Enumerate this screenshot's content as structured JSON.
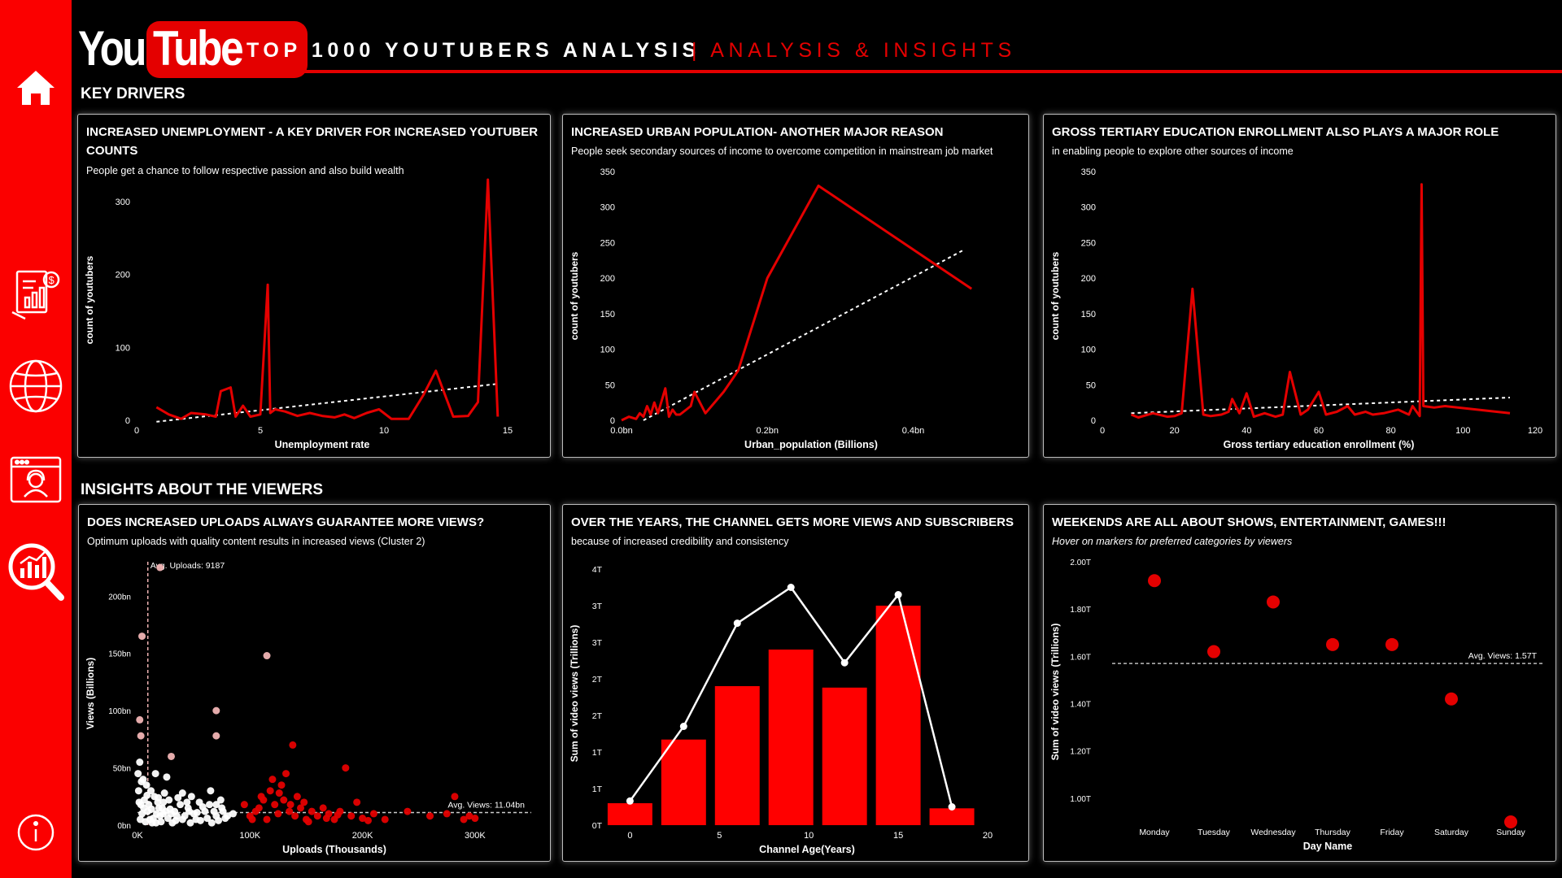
{
  "header": {
    "logo_you": "You",
    "logo_tube": "Tube",
    "title": "TOP 1000 YOUTUBERS ANALYSIS",
    "subtitle": "| ANALYSIS & INSIGHTS"
  },
  "sidebar": {
    "items": [
      {
        "icon": "home-icon"
      },
      {
        "icon": "financial-report-icon"
      },
      {
        "icon": "globe-icon"
      },
      {
        "icon": "web-support-icon"
      },
      {
        "icon": "analytics-search-icon"
      },
      {
        "icon": "info-icon"
      }
    ]
  },
  "colors": {
    "accent": "#e40000",
    "sidebar": "#fb0000",
    "background": "#000000",
    "light_marker": "#f0b4b4"
  },
  "sections": {
    "key_drivers": "KEY DRIVERS",
    "insights": "INSIGHTS ABOUT THE VIEWERS"
  },
  "cards": {
    "unemployment": {
      "title": "INCREASED UNEMPLOYMENT - A KEY DRIVER FOR INCREASED YOUTUBER COUNTS",
      "subtitle": "People get a chance to follow respective passion and also build wealth"
    },
    "urban": {
      "title": "INCREASED URBAN POPULATION- ANOTHER MAJOR REASON",
      "subtitle": "People seek secondary sources of income to overcome competition in mainstream job market"
    },
    "education": {
      "title": "GROSS TERTIARY EDUCATION ENROLLMENT ALSO PLAYS A MAJOR ROLE",
      "subtitle": "in enabling people to explore other sources of income"
    },
    "uploads": {
      "title": "DOES INCREASED UPLOADS ALWAYS GUARANTEE MORE VIEWS?",
      "subtitle": "Optimum uploads with quality content results in increased views (Cluster 2)"
    },
    "age": {
      "title": "OVER THE YEARS, THE CHANNEL GETS MORE VIEWS AND SUBSCRIBERS",
      "subtitle": "because of increased credibility and consistency"
    },
    "weekday": {
      "title": "WEEKENDS ARE ALL ABOUT SHOWS, ENTERTAINMENT, GAMES!!!",
      "subtitle": "Hover on markers for preferred categories by viewers"
    }
  },
  "chart_data": [
    {
      "id": "unemployment",
      "type": "line",
      "xlabel": "Unemployment rate",
      "ylabel": "count of youtubers",
      "xlim": [
        0,
        15
      ],
      "ylim": [
        0,
        330
      ],
      "xticks": [
        "0",
        "5",
        "10",
        "15"
      ],
      "xtick_values": [
        0,
        5,
        10,
        15
      ],
      "yticks": [
        "0",
        "100",
        "200",
        "300"
      ],
      "ytick_values": [
        0,
        100,
        200,
        300
      ],
      "x": [
        0.8,
        1.3,
        1.8,
        2.2,
        2.8,
        3.2,
        3.4,
        3.8,
        4.0,
        4.3,
        4.6,
        5.0,
        5.3,
        5.4,
        5.6,
        6.0,
        6.5,
        7.0,
        7.5,
        8.0,
        8.4,
        8.8,
        9.3,
        9.8,
        10.3,
        11.0,
        11.6,
        12.1,
        12.8,
        13.4,
        13.8,
        14.2,
        14.6
      ],
      "y": [
        18,
        8,
        2,
        10,
        8,
        5,
        40,
        45,
        5,
        20,
        5,
        8,
        186,
        10,
        15,
        12,
        6,
        10,
        6,
        4,
        8,
        3,
        10,
        15,
        2,
        2,
        35,
        68,
        5,
        6,
        25,
        330,
        5
      ],
      "trend": [
        [
          0.8,
          -2
        ],
        [
          14.6,
          50
        ]
      ]
    },
    {
      "id": "urban",
      "type": "line",
      "xlabel": "Urban_population (Billions)",
      "ylabel": "count of youtubers",
      "xlim": [
        0,
        0.52
      ],
      "ylim": [
        0,
        350
      ],
      "xticks": [
        "0.0bn",
        "0.2bn",
        "0.4bn"
      ],
      "xtick_values": [
        0,
        0.2,
        0.4
      ],
      "yticks": [
        "0",
        "50",
        "100",
        "150",
        "200",
        "250",
        "300",
        "350"
      ],
      "ytick_values": [
        0,
        50,
        100,
        150,
        200,
        250,
        300,
        350
      ],
      "x": [
        0.0,
        0.01,
        0.02,
        0.025,
        0.03,
        0.035,
        0.04,
        0.045,
        0.05,
        0.06,
        0.065,
        0.07,
        0.075,
        0.08,
        0.095,
        0.1,
        0.115,
        0.14,
        0.16,
        0.2,
        0.27,
        0.48
      ],
      "y": [
        0,
        5,
        2,
        10,
        5,
        20,
        8,
        25,
        10,
        45,
        5,
        15,
        8,
        8,
        20,
        40,
        10,
        40,
        70,
        200,
        330,
        185
      ],
      "trend": [
        [
          0.03,
          0
        ],
        [
          0.47,
          240
        ]
      ]
    },
    {
      "id": "education",
      "type": "line",
      "xlabel": "Gross tertiary education enrollment (%)",
      "ylabel": "count of youtubers",
      "xlim": [
        0,
        120
      ],
      "ylim": [
        0,
        350
      ],
      "xticks": [
        "0",
        "20",
        "40",
        "60",
        "80",
        "100",
        "120"
      ],
      "xtick_values": [
        0,
        20,
        40,
        60,
        80,
        100,
        120
      ],
      "yticks": [
        "0",
        "50",
        "100",
        "150",
        "200",
        "250",
        "300",
        "350"
      ],
      "ytick_values": [
        0,
        50,
        100,
        150,
        200,
        250,
        300,
        350
      ],
      "x": [
        8,
        10,
        14,
        18,
        20,
        22,
        25,
        28,
        30,
        33,
        35,
        36,
        38,
        40,
        42,
        45,
        48,
        50,
        52,
        55,
        57,
        60,
        62,
        65,
        68,
        70,
        73,
        75,
        78,
        82,
        85,
        86,
        88,
        88.5,
        89,
        92,
        95,
        113
      ],
      "y": [
        8,
        4,
        10,
        5,
        6,
        10,
        185,
        8,
        6,
        8,
        12,
        30,
        10,
        38,
        5,
        10,
        5,
        8,
        68,
        8,
        15,
        40,
        8,
        12,
        20,
        8,
        12,
        8,
        10,
        15,
        8,
        20,
        6,
        332,
        20,
        18,
        20,
        10
      ],
      "trend": [
        [
          8,
          10
        ],
        [
          113,
          32
        ]
      ]
    },
    {
      "id": "uploads",
      "type": "scatter",
      "xlabel": "Uploads (Thousands)",
      "ylabel": "Views (Billions)",
      "xlim": [
        0,
        350
      ],
      "ylim": [
        0,
        230
      ],
      "xticks": [
        "0K",
        "100K",
        "200K",
        "300K"
      ],
      "xtick_values": [
        0,
        100,
        200,
        300
      ],
      "yticks": [
        "0bn",
        "50bn",
        "100bn",
        "150bn",
        "200bn"
      ],
      "ytick_values": [
        0,
        50,
        100,
        150,
        200
      ],
      "avg_uploads_label": "Avg. Uploads: 9187",
      "avg_uploads": 9.187,
      "avg_views_label": "Avg. Views: 11.04bn",
      "avg_views": 11.04,
      "series": [
        {
          "cluster": "white",
          "points": [
            [
              2,
              55
            ],
            [
              5,
              40
            ],
            [
              8,
              35
            ],
            [
              12,
              30
            ],
            [
              15,
              25
            ],
            [
              18,
              20
            ],
            [
              22,
              15
            ],
            [
              25,
              12
            ],
            [
              30,
              10
            ],
            [
              35,
              8
            ],
            [
              40,
              5
            ],
            [
              45,
              15
            ],
            [
              50,
              10
            ],
            [
              55,
              20
            ],
            [
              60,
              12
            ],
            [
              65,
              30
            ],
            [
              70,
              8
            ],
            [
              75,
              15
            ],
            [
              10,
              18
            ],
            [
              20,
              8
            ],
            [
              28,
              22
            ],
            [
              33,
              12
            ],
            [
              38,
              18
            ],
            [
              42,
              8
            ],
            [
              48,
              25
            ],
            [
              52,
              5
            ],
            [
              58,
              16
            ],
            [
              62,
              6
            ],
            [
              68,
              12
            ],
            [
              72,
              4
            ],
            [
              4,
              10
            ],
            [
              6,
              22
            ],
            [
              14,
              6
            ],
            [
              24,
              28
            ],
            [
              16,
              45
            ],
            [
              26,
              42
            ],
            [
              1,
              30
            ],
            [
              3,
              18
            ],
            [
              9,
              12
            ],
            [
              11,
              5
            ],
            [
              13,
              2
            ],
            [
              17,
              10
            ],
            [
              19,
              15
            ],
            [
              21,
              3
            ],
            [
              23,
              20
            ],
            [
              27,
              6
            ],
            [
              29,
              14
            ],
            [
              31,
              2
            ],
            [
              36,
              24
            ],
            [
              40,
              28
            ],
            [
              44,
              20
            ],
            [
              46,
              12
            ],
            [
              56,
              4
            ],
            [
              64,
              18
            ],
            [
              74,
              22
            ],
            [
              78,
              6
            ],
            [
              80,
              8
            ],
            [
              0.5,
              45
            ],
            [
              1.5,
              20
            ],
            [
              2.5,
              5
            ],
            [
              3.5,
              38
            ],
            [
              5.5,
              15
            ],
            [
              7,
              3
            ],
            [
              8.5,
              26
            ],
            [
              12.5,
              14
            ],
            [
              16.5,
              2
            ],
            [
              18.5,
              24
            ],
            [
              22.5,
              10
            ],
            [
              34,
              4
            ],
            [
              47,
              2
            ],
            [
              53,
              11
            ],
            [
              66,
              2
            ],
            [
              70,
              18
            ],
            [
              76,
              12
            ],
            [
              85,
              10
            ]
          ]
        },
        {
          "cluster": "red",
          "points": [
            [
              95,
              18
            ],
            [
              100,
              8
            ],
            [
              105,
              12
            ],
            [
              108,
              15
            ],
            [
              110,
              25
            ],
            [
              112,
              22
            ],
            [
              115,
              5
            ],
            [
              118,
              30
            ],
            [
              120,
              40
            ],
            [
              122,
              18
            ],
            [
              125,
              10
            ],
            [
              128,
              35
            ],
            [
              130,
              22
            ],
            [
              132,
              45
            ],
            [
              135,
              12
            ],
            [
              138,
              70
            ],
            [
              140,
              8
            ],
            [
              142,
              25
            ],
            [
              145,
              15
            ],
            [
              148,
              20
            ],
            [
              150,
              5
            ],
            [
              155,
              12
            ],
            [
              160,
              8
            ],
            [
              165,
              15
            ],
            [
              170,
              10
            ],
            [
              175,
              5
            ],
            [
              180,
              12
            ],
            [
              185,
              50
            ],
            [
              190,
              8
            ],
            [
              195,
              20
            ],
            [
              200,
              6
            ],
            [
              210,
              10
            ],
            [
              220,
              5
            ],
            [
              240,
              12
            ],
            [
              260,
              8
            ],
            [
              275,
              10
            ],
            [
              282,
              25
            ],
            [
              290,
              5
            ],
            [
              295,
              8
            ],
            [
              300,
              6
            ],
            [
              102,
              5
            ],
            [
              126,
              28
            ],
            [
              136,
              18
            ],
            [
              152,
              3
            ],
            [
              168,
              6
            ],
            [
              178,
              9
            ],
            [
              205,
              4
            ]
          ]
        },
        {
          "cluster": "light",
          "points": [
            [
              4,
              165
            ],
            [
              2,
              92
            ],
            [
              3,
              78
            ],
            [
              20,
              225
            ],
            [
              30,
              60
            ],
            [
              70,
              100
            ],
            [
              70,
              78
            ],
            [
              115,
              148
            ]
          ]
        }
      ]
    },
    {
      "id": "age",
      "type": "bar",
      "xlabel": "Channel Age(Years)",
      "ylabel": "Sum of video views (Trillions)",
      "xlim": [
        -1.2,
        21
      ],
      "ylim": [
        0,
        3.6
      ],
      "xticks": [
        "0",
        "5",
        "10",
        "15",
        "20"
      ],
      "xtick_values": [
        0,
        5,
        10,
        15,
        20
      ],
      "yticks": [
        "0T",
        "1T",
        "1T",
        "2T",
        "2T",
        "3T",
        "3T",
        "4T"
      ],
      "ytick_values": [
        0,
        0.5,
        1.0,
        1.5,
        2.0,
        2.5,
        3.0,
        3.5
      ],
      "bar_centers": [
        0,
        3,
        6,
        9,
        12,
        15,
        18
      ],
      "bar_values": [
        0.3,
        1.17,
        1.9,
        2.4,
        1.88,
        3.0,
        0.23
      ],
      "line_x": [
        0,
        3,
        6,
        9,
        12,
        15,
        18
      ],
      "line_values": [
        0.33,
        1.35,
        2.76,
        3.25,
        2.22,
        3.15,
        0.25
      ]
    },
    {
      "id": "weekday",
      "type": "scatter",
      "xlabel": "Day Name",
      "ylabel": "Sum of video views (Trillions)",
      "ylim": [
        0.9,
        2.0
      ],
      "categories": [
        "Monday",
        "Tuesday",
        "Wednesday",
        "Thursday",
        "Friday",
        "Saturday",
        "Sunday"
      ],
      "yticks": [
        "1.00T",
        "1.20T",
        "1.40T",
        "1.60T",
        "1.80T",
        "2.00T"
      ],
      "ytick_values": [
        1.0,
        1.2,
        1.4,
        1.6,
        1.8,
        2.0
      ],
      "values": [
        1.92,
        1.62,
        1.83,
        1.65,
        1.65,
        1.42,
        0.9
      ],
      "avg_label": "Avg. Views: 1.57T",
      "avg": 1.57
    }
  ]
}
